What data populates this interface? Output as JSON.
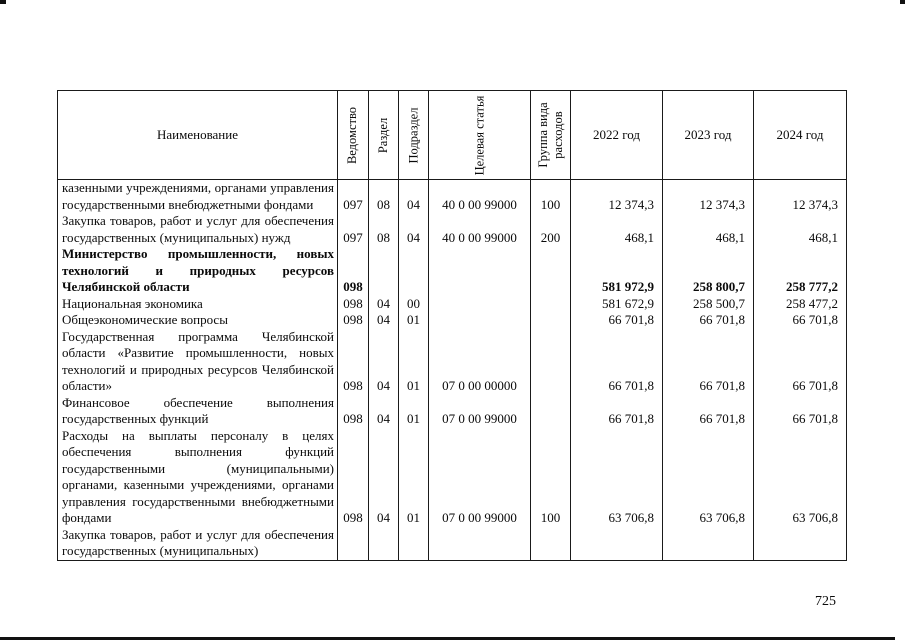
{
  "page_number": "725",
  "table": {
    "headers": {
      "name": "Наименование",
      "vedomstvo": "Ведомство",
      "razdel": "Раздел",
      "podrazdel": "Подраздел",
      "tselevaya_statya": "Целевая статья",
      "gruppa_vida_raskhodov": "Группа вида расходов",
      "y2022": "2022 год",
      "y2023": "2023 год",
      "y2024": "2024 год"
    },
    "rows": [
      {
        "name": "казенными учреждениями, органами управления государственными внебюджетными фондами",
        "ved": "097",
        "rz": "08",
        "pr": "04",
        "ts": "40 0 00 99000",
        "vr": "100",
        "y2022": "12 374,3",
        "y2023": "12 374,3",
        "y2024": "12 374,3",
        "bold": false
      },
      {
        "name": "Закупка товаров, работ и услуг для обеспечения государственных (муниципальных) нужд",
        "ved": "097",
        "rz": "08",
        "pr": "04",
        "ts": "40 0 00 99000",
        "vr": "200",
        "y2022": "468,1",
        "y2023": "468,1",
        "y2024": "468,1",
        "bold": false
      },
      {
        "name": "Министерство промышленности, новых технологий и природных ресурсов Челябинской области",
        "ved": "098",
        "rz": "",
        "pr": "",
        "ts": "",
        "vr": "",
        "y2022": "581 972,9",
        "y2023": "258 800,7",
        "y2024": "258 777,2",
        "bold": true
      },
      {
        "name": "Национальная экономика",
        "ved": "098",
        "rz": "04",
        "pr": "00",
        "ts": "",
        "vr": "",
        "y2022": "581 672,9",
        "y2023": "258 500,7",
        "y2024": "258 477,2",
        "bold": false
      },
      {
        "name": "Общеэкономические вопросы",
        "ved": "098",
        "rz": "04",
        "pr": "01",
        "ts": "",
        "vr": "",
        "y2022": "66 701,8",
        "y2023": "66 701,8",
        "y2024": "66 701,8",
        "bold": false
      },
      {
        "name": "Государственная программа Челябинской области «Развитие промышленности, новых технологий и природных ресурсов Челябинской области»",
        "ved": "098",
        "rz": "04",
        "pr": "01",
        "ts": "07 0 00 00000",
        "vr": "",
        "y2022": "66 701,8",
        "y2023": "66 701,8",
        "y2024": "66 701,8",
        "bold": false
      },
      {
        "name": "Финансовое обеспечение выполнения государственных функций",
        "ved": "098",
        "rz": "04",
        "pr": "01",
        "ts": "07 0 00 99000",
        "vr": "",
        "y2022": "66 701,8",
        "y2023": "66 701,8",
        "y2024": "66 701,8",
        "bold": false
      },
      {
        "name": "Расходы на выплаты персоналу в целях обеспечения выполнения функций государственными (муниципальными) органами, казенными учреждениями, органами управления государственными внебюджетными фондами",
        "ved": "098",
        "rz": "04",
        "pr": "01",
        "ts": "07 0 00 99000",
        "vr": "100",
        "y2022": "63 706,8",
        "y2023": "63 706,8",
        "y2024": "63 706,8",
        "bold": false
      },
      {
        "name": "Закупка товаров, работ и услуг для обеспечения государственных (муниципальных)",
        "ved": "",
        "rz": "",
        "pr": "",
        "ts": "",
        "vr": "",
        "y2022": "",
        "y2023": "",
        "y2024": "",
        "bold": false
      }
    ]
  }
}
